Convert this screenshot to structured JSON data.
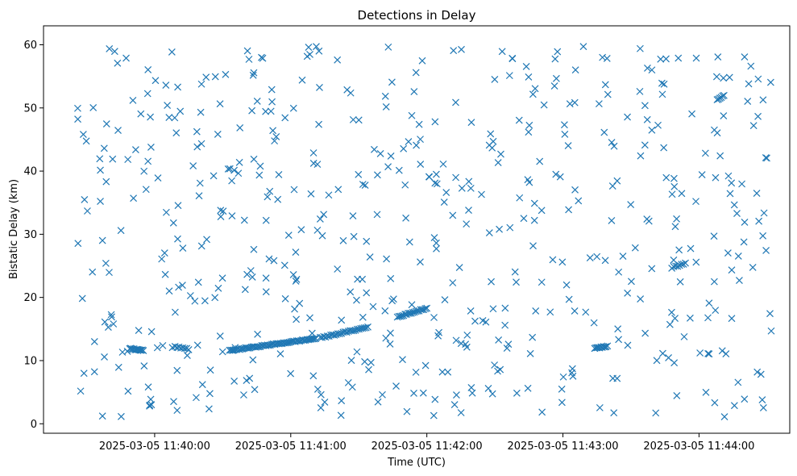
{
  "chart_data": {
    "type": "scatter",
    "title": "Detections in Delay",
    "xlabel": "Time (UTC)",
    "ylabel": "Bistatic Delay (km)",
    "marker": "x",
    "color": "#1f77b4",
    "grid": false,
    "x_format": "YYYY-MM-DD HH:MM:SS",
    "xlim": [
      "2025-03-05 11:39:11",
      "2025-03-05 11:44:40"
    ],
    "ylim": [
      -1.5,
      63
    ],
    "x_ticks": [
      "2025-03-05 11:40:00",
      "2025-03-05 11:41:00",
      "2025-03-05 11:42:00",
      "2025-03-05 11:43:00",
      "2025-03-05 11:44:00"
    ],
    "y_ticks": [
      "0",
      "10",
      "20",
      "30",
      "40",
      "50",
      "60"
    ],
    "tracks": [
      {
        "from": [
          "2025-03-05 11:39:49",
          11.9
        ],
        "to": [
          "2025-03-05 11:39:55",
          11.6
        ],
        "count": 14
      },
      {
        "from": [
          "2025-03-05 11:40:09",
          12.2
        ],
        "to": [
          "2025-03-05 11:40:15",
          11.8
        ],
        "count": 8
      },
      {
        "from": [
          "2025-03-05 11:40:33",
          11.6
        ],
        "to": [
          "2025-03-05 11:41:11",
          13.5
        ],
        "count": 60
      },
      {
        "from": [
          "2025-03-05 11:41:13",
          13.6
        ],
        "to": [
          "2025-03-05 11:41:34",
          15.3
        ],
        "count": 28
      },
      {
        "from": [
          "2025-03-05 11:41:47",
          16.9
        ],
        "to": [
          "2025-03-05 11:42:00",
          18.3
        ],
        "count": 20
      },
      {
        "from": [
          "2025-03-05 11:43:14",
          12.0
        ],
        "to": [
          "2025-03-05 11:43:19",
          12.2
        ],
        "count": 10
      },
      {
        "from": [
          "2025-03-05 11:43:48",
          24.7
        ],
        "to": [
          "2025-03-05 11:43:54",
          25.4
        ],
        "count": 8
      },
      {
        "from": [
          "2025-03-05 11:44:08",
          51.3
        ],
        "to": [
          "2025-03-05 11:44:11",
          52.0
        ],
        "count": 6
      }
    ],
    "scatter": {
      "start": "2025-03-05 11:39:26",
      "end": "2025-03-05 11:44:32",
      "ymin": 1.0,
      "ymax": 59.8,
      "count": 560
    }
  }
}
